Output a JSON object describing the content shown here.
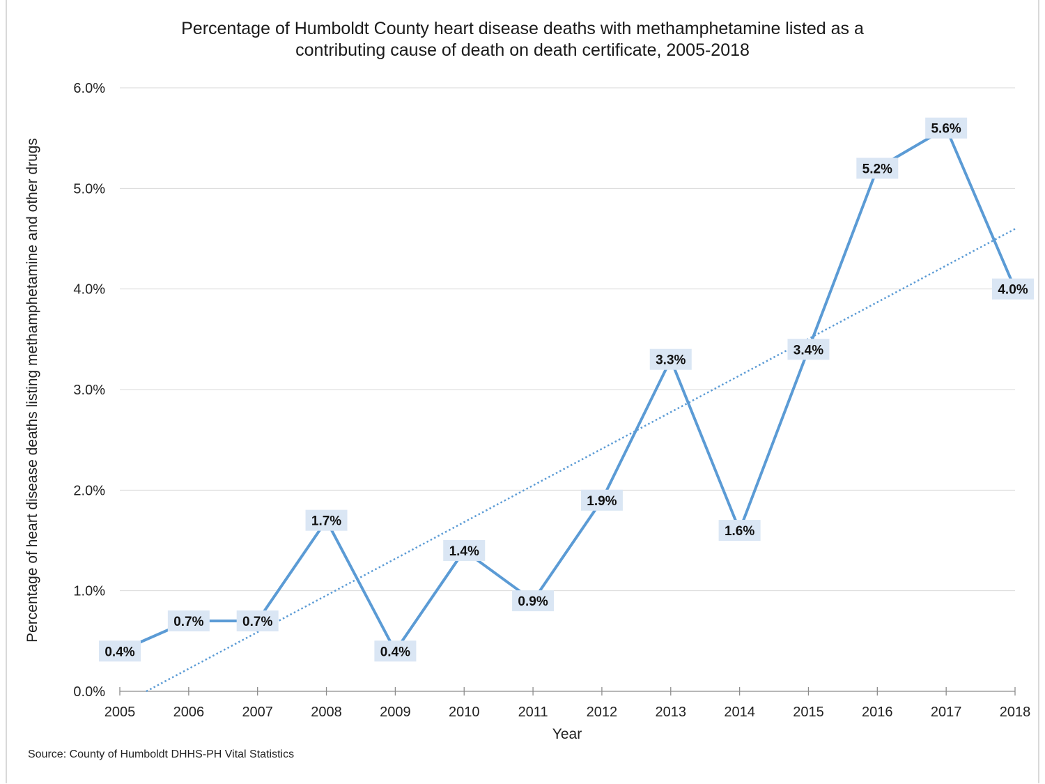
{
  "chart_data": {
    "type": "line",
    "title_line1": "Percentage of Humboldt County heart disease deaths with methamphetamine listed as a",
    "title_line2": "contributing cause of death on death certificate, 2005-2018",
    "xlabel": "Year",
    "ylabel": "Percentage of heart disease deaths listing methamphetamine  and other drugs",
    "x": [
      2005,
      2006,
      2007,
      2008,
      2009,
      2010,
      2011,
      2012,
      2013,
      2014,
      2015,
      2016,
      2017,
      2018
    ],
    "values": [
      0.4,
      0.7,
      0.7,
      1.7,
      0.4,
      1.4,
      0.9,
      1.9,
      3.3,
      1.6,
      3.4,
      5.2,
      5.6,
      4.0
    ],
    "data_labels": [
      "0.4%",
      "0.7%",
      "0.7%",
      "1.7%",
      "0.4%",
      "1.4%",
      "0.9%",
      "1.9%",
      "3.3%",
      "1.6%",
      "3.4%",
      "5.2%",
      "5.6%",
      "4.0%"
    ],
    "ylim": [
      0,
      6
    ],
    "yticks": [
      "0.0%",
      "1.0%",
      "2.0%",
      "3.0%",
      "4.0%",
      "5.0%",
      "6.0%"
    ],
    "grid": true,
    "trendline": "linear, dotted",
    "line_color": "#5b9bd5",
    "label_bg_color": "#dae6f4",
    "source": "Source:  County of Humboldt  DHHS-PH Vital Statistics"
  }
}
